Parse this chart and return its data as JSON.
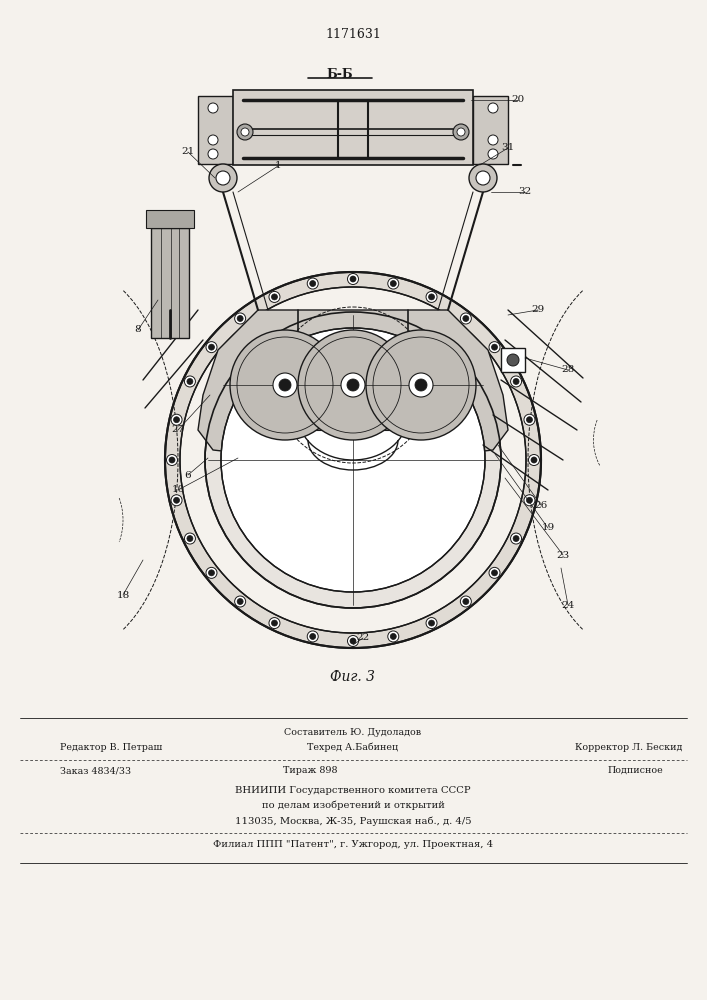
{
  "patent_number": "1171631",
  "fig_label": "Фиг. 3",
  "section_label": "Б-Б",
  "bg": "#f5f2ed",
  "lc": "#1a1a1a",
  "footer_line1_left": "Редактор В. Петраш",
  "footer_line1_center_top": "Составитель Ю. Дудоладов",
  "footer_line1_center_bot": "Техред А.Бабинец",
  "footer_line1_right": "Корректор Л. Бескид",
  "footer_line2_left": "Заказ 4834/33",
  "footer_line2_center": "Тираж 898",
  "footer_line2_right": "Подписное",
  "footer_block1": "ВНИИПИ Государственного комитета СССР",
  "footer_block2": "по делам изобретений и открытий",
  "footer_block3": "113035, Москва, Ж-35, Раушская наб., д. 4/5",
  "footer_block4": "Филиал ППП \"Патент\", г. Ужгород, ул. Проектная, 4"
}
